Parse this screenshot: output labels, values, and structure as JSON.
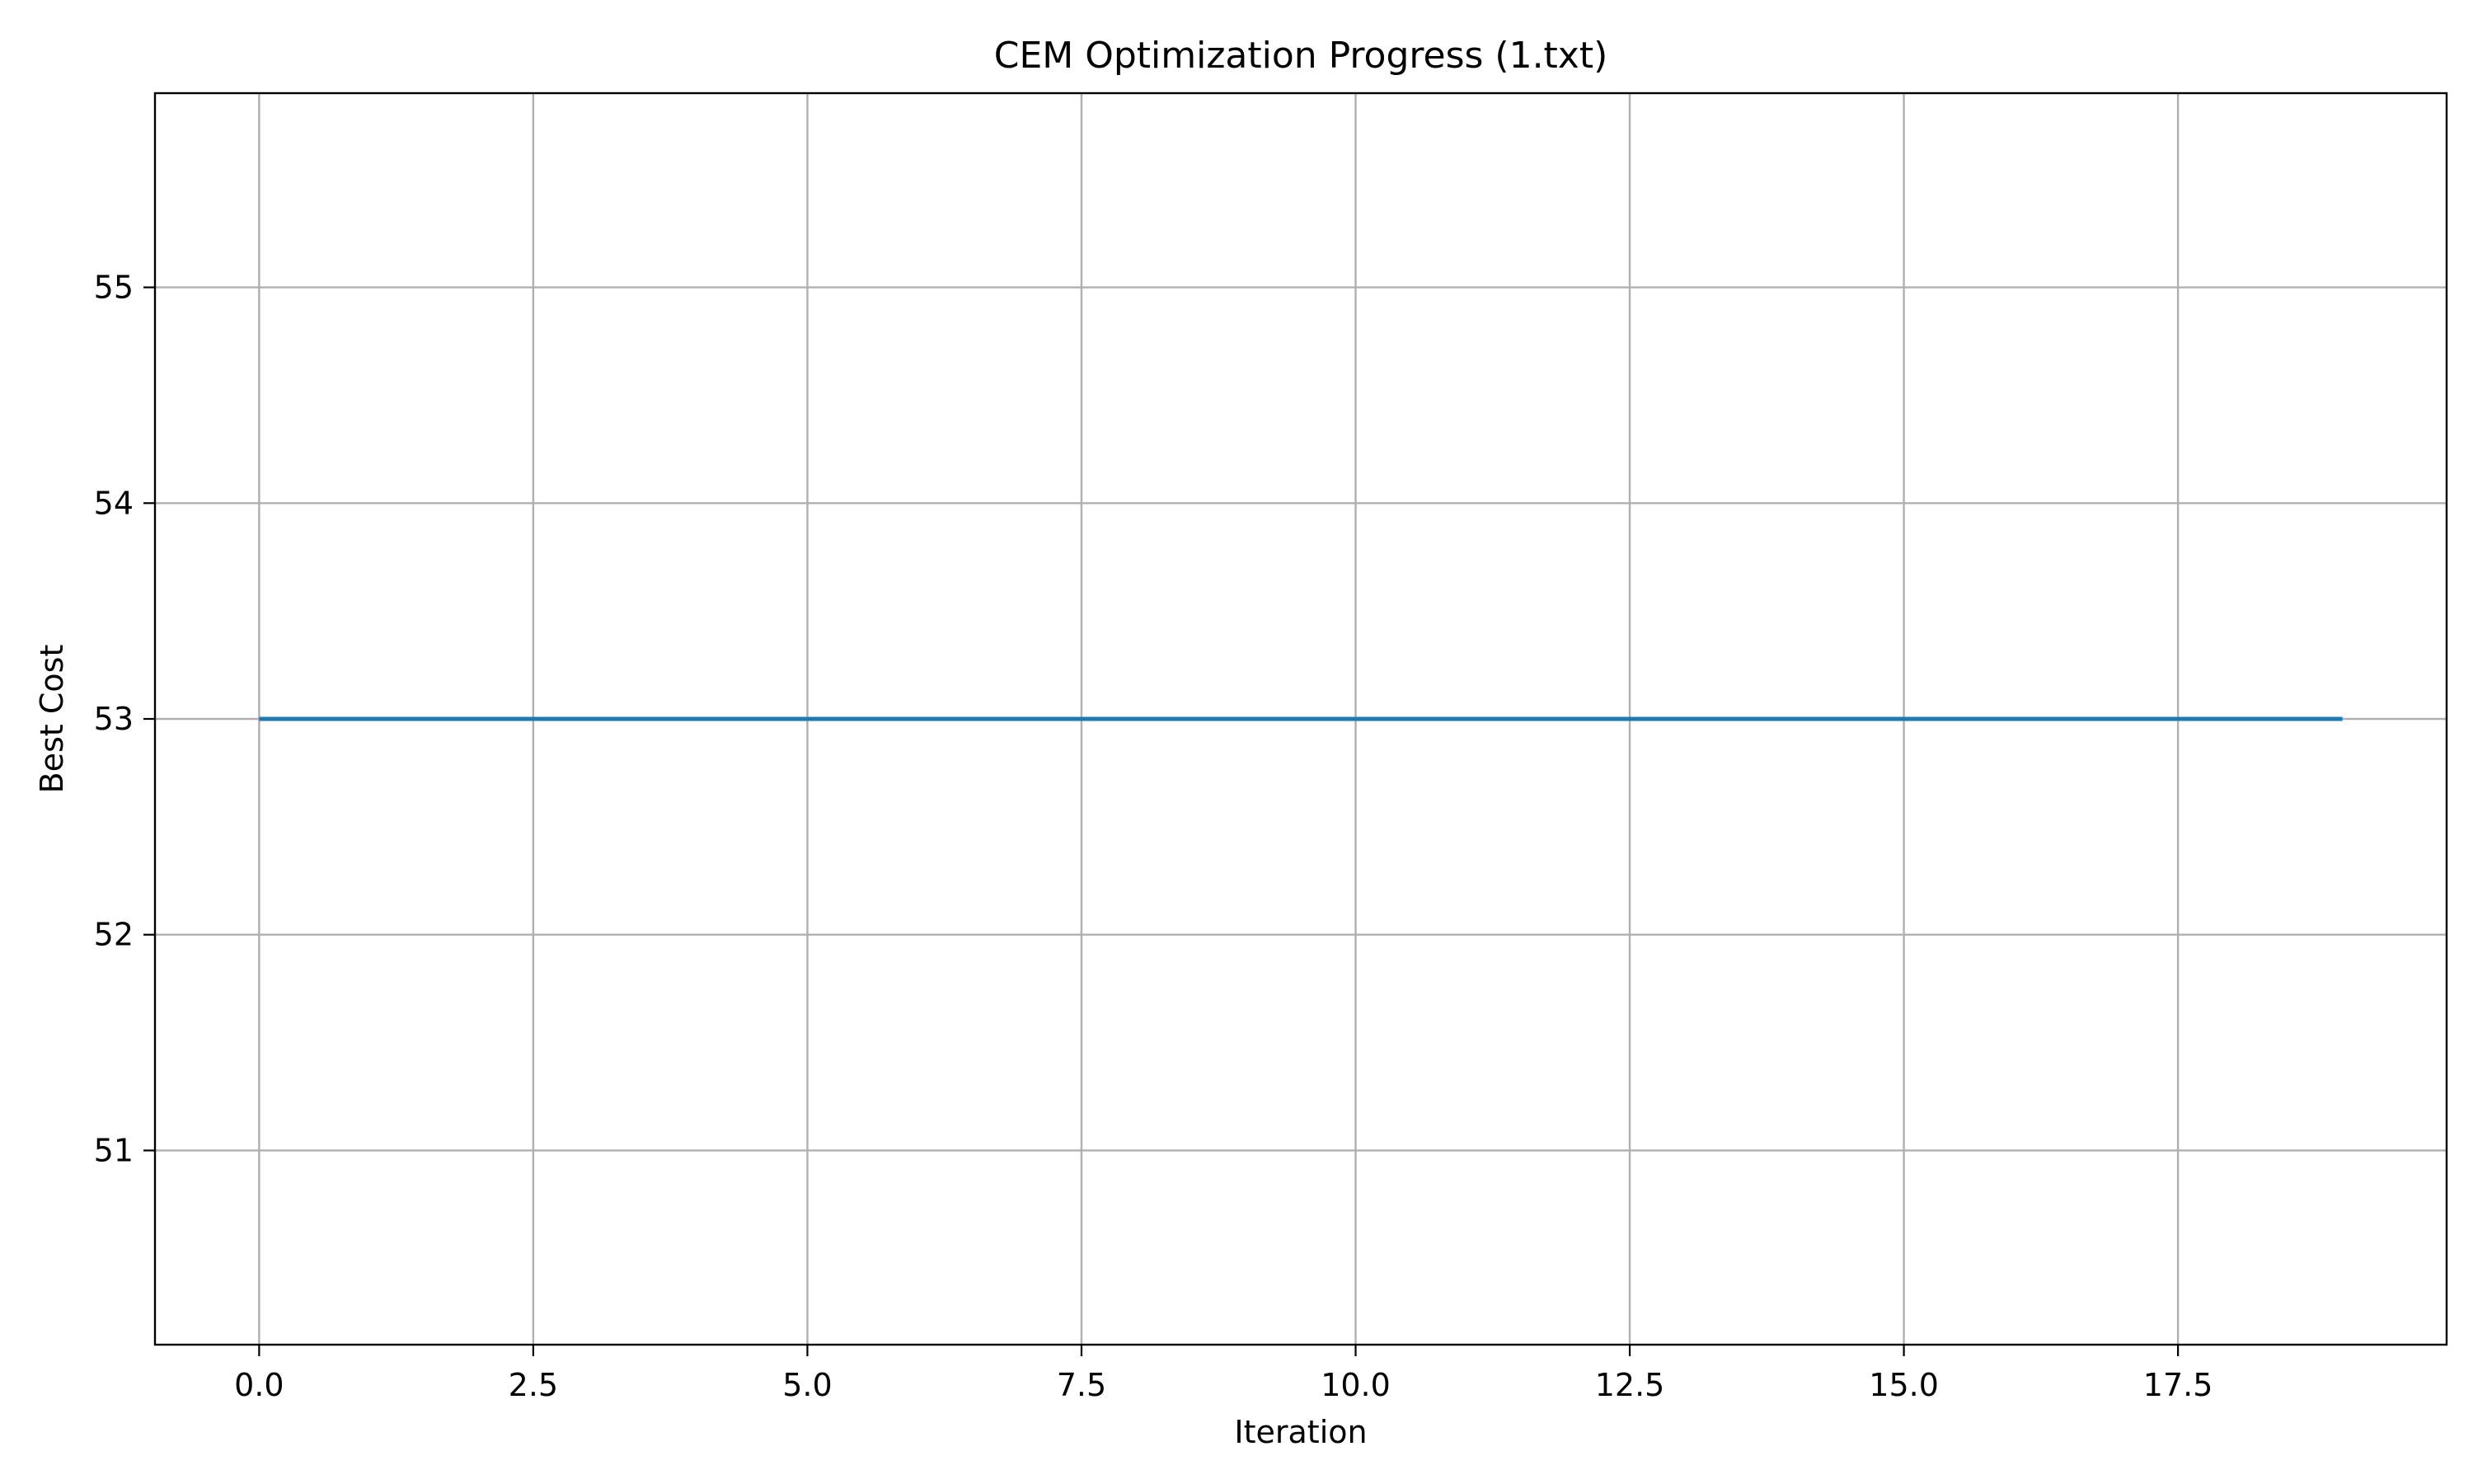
{
  "chart_data": {
    "type": "line",
    "title": "CEM Optimization Progress (1.txt)",
    "xlabel": "Iteration",
    "ylabel": "Best Cost",
    "xlim": [
      -0.95,
      19.95
    ],
    "ylim": [
      50.1,
      55.9
    ],
    "xticks": [
      0.0,
      2.5,
      5.0,
      7.5,
      10.0,
      12.5,
      15.0,
      17.5
    ],
    "xtick_labels": [
      "0.0",
      "2.5",
      "5.0",
      "7.5",
      "10.0",
      "12.5",
      "15.0",
      "17.5"
    ],
    "yticks": [
      51,
      52,
      53,
      54,
      55
    ],
    "ytick_labels": [
      "51",
      "52",
      "53",
      "54",
      "55"
    ],
    "grid": true,
    "legend": false,
    "series": [
      {
        "color": "#1f77b4",
        "x": [
          0,
          1,
          2,
          3,
          4,
          5,
          6,
          7,
          8,
          9,
          10,
          11,
          12,
          13,
          14,
          15,
          16,
          17,
          18,
          19
        ],
        "y": [
          53,
          53,
          53,
          53,
          53,
          53,
          53,
          53,
          53,
          53,
          53,
          53,
          53,
          53,
          53,
          53,
          53,
          53,
          53,
          53
        ]
      }
    ]
  }
}
